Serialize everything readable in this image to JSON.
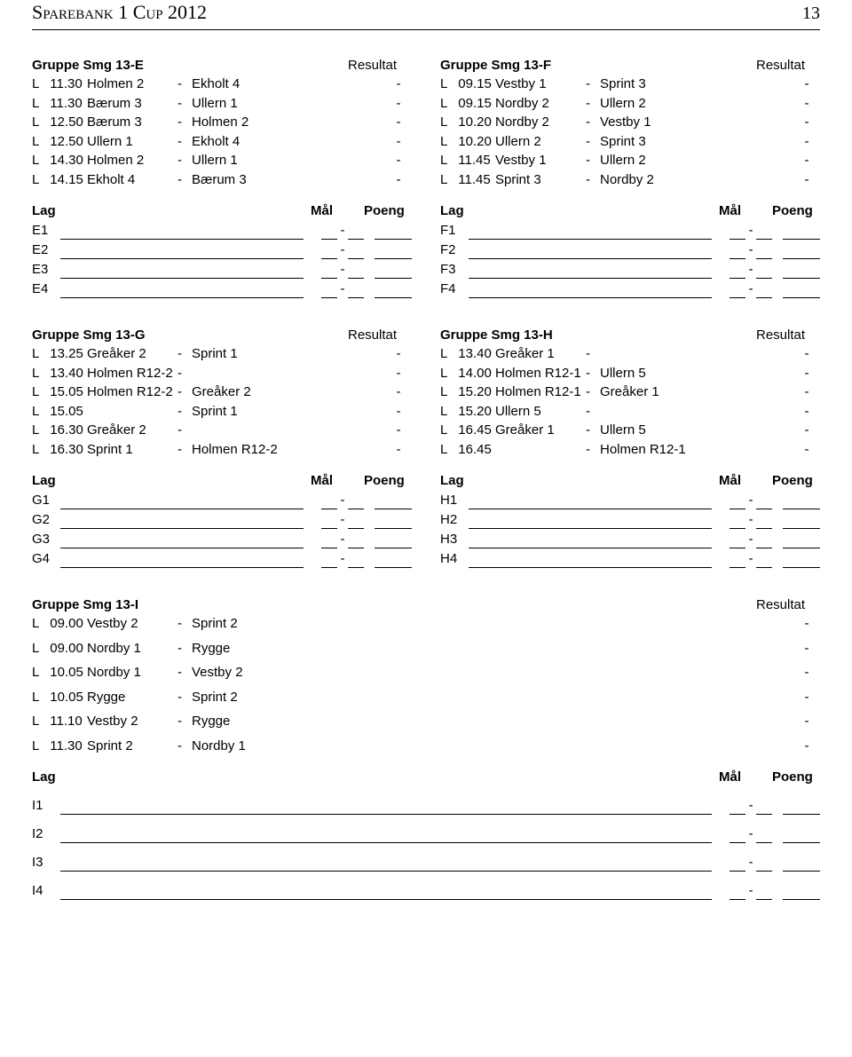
{
  "page": {
    "title": "Sparebank 1 Cup 2012",
    "number": "13"
  },
  "labels": {
    "resultat": "Resultat",
    "lag": "Lag",
    "mal": "Mål",
    "poeng": "Poeng"
  },
  "groups": [
    {
      "title": "Gruppe Smg 13-E",
      "matches": [
        {
          "d": "L",
          "t": "11.30",
          "h": "Holmen 2",
          "a": "Ekholt 4",
          "r": "-"
        },
        {
          "d": "L",
          "t": "11.30",
          "h": "Bærum 3",
          "a": "Ullern 1",
          "r": "-"
        },
        {
          "d": "L",
          "t": "12.50",
          "h": "Bærum 3",
          "a": "Holmen 2",
          "r": "-"
        },
        {
          "d": "L",
          "t": "12.50",
          "h": "Ullern 1",
          "a": "Ekholt 4",
          "r": "-"
        },
        {
          "d": "L",
          "t": "14.30",
          "h": "Holmen 2",
          "a": "Ullern 1",
          "r": "-"
        },
        {
          "d": "L",
          "t": "14.15",
          "h": "Ekholt 4",
          "a": "Bærum 3",
          "r": "-"
        }
      ],
      "stand": [
        "E1",
        "E2",
        "E3",
        "E4"
      ]
    },
    {
      "title": "Gruppe Smg 13-F",
      "matches": [
        {
          "d": "L",
          "t": "09.15",
          "h": "Vestby 1",
          "a": "Sprint 3",
          "r": "-"
        },
        {
          "d": "L",
          "t": "09.15",
          "h": "Nordby 2",
          "a": "Ullern 2",
          "r": "-"
        },
        {
          "d": "L",
          "t": "10.20",
          "h": "Nordby 2",
          "a": "Vestby 1",
          "r": "-"
        },
        {
          "d": "L",
          "t": "10.20",
          "h": "Ullern 2",
          "a": "Sprint 3",
          "r": "-"
        },
        {
          "d": "L",
          "t": "11.45",
          "h": "Vestby 1",
          "a": "Ullern 2",
          "r": "-"
        },
        {
          "d": "L",
          "t": "11.45",
          "h": "Sprint 3",
          "a": "Nordby 2",
          "r": "-"
        }
      ],
      "stand": [
        "F1",
        "F2",
        "F3",
        "F4"
      ]
    },
    {
      "title": "Gruppe Smg 13-G",
      "matches": [
        {
          "d": "L",
          "t": "13.25",
          "h": "Greåker 2",
          "a": "Sprint 1",
          "r": "-"
        },
        {
          "d": "L",
          "t": "13.40",
          "h": "Holmen R12-2",
          "a": "",
          "r": "-"
        },
        {
          "d": "L",
          "t": "15.05",
          "h": "Holmen R12-2",
          "a": "Greåker 2",
          "r": "-"
        },
        {
          "d": "L",
          "t": "15.05",
          "h": "",
          "a": "Sprint 1",
          "r": "-"
        },
        {
          "d": "L",
          "t": "16.30",
          "h": "Greåker 2",
          "a": "",
          "r": "-"
        },
        {
          "d": "L",
          "t": "16.30",
          "h": "Sprint 1",
          "a": "Holmen R12-2",
          "r": "-"
        }
      ],
      "stand": [
        "G1",
        "G2",
        "G3",
        "G4"
      ]
    },
    {
      "title": "Gruppe Smg 13-H",
      "matches": [
        {
          "d": "L",
          "t": "13.40",
          "h": "Greåker 1",
          "a": "",
          "r": "-"
        },
        {
          "d": "L",
          "t": "14.00",
          "h": "Holmen R12-1",
          "a": "Ullern 5",
          "r": "-"
        },
        {
          "d": "L",
          "t": "15.20",
          "h": "Holmen R12-1",
          "a": "Greåker 1",
          "r": "-"
        },
        {
          "d": "L",
          "t": "15.20",
          "h": "Ullern 5",
          "a": "",
          "r": "-"
        },
        {
          "d": "L",
          "t": "16.45",
          "h": "Greåker 1",
          "a": "Ullern 5",
          "r": "-"
        },
        {
          "d": "L",
          "t": "16.45",
          "h": "",
          "a": "Holmen R12-1",
          "r": "-"
        }
      ],
      "stand": [
        "H1",
        "H2",
        "H3",
        "H4"
      ]
    },
    {
      "title": "Gruppe Smg 13-I",
      "matches": [
        {
          "d": "L",
          "t": "09.00",
          "h": "Vestby 2",
          "a": "Sprint 2",
          "r": "-"
        },
        {
          "d": "L",
          "t": "09.00",
          "h": "Nordby 1",
          "a": "Rygge",
          "r": "-"
        },
        {
          "d": "L",
          "t": "10.05",
          "h": "Nordby 1",
          "a": "Vestby 2",
          "r": "-"
        },
        {
          "d": "L",
          "t": "10.05",
          "h": "Rygge",
          "a": "Sprint 2",
          "r": "-"
        },
        {
          "d": "L",
          "t": "11.10",
          "h": "Vestby 2",
          "a": "Rygge",
          "r": "-"
        },
        {
          "d": "L",
          "t": "11.30",
          "h": "Sprint 2",
          "a": "Nordby 1",
          "r": "-"
        }
      ],
      "stand": [
        "I1",
        "I2",
        "I3",
        "I4"
      ]
    }
  ]
}
